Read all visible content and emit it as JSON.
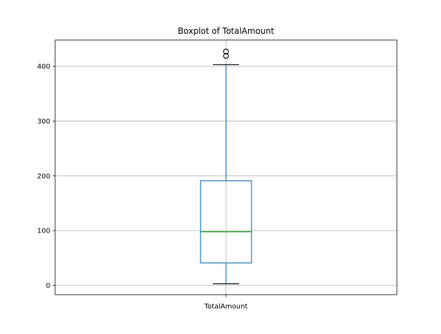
{
  "chart_data": {
    "type": "boxplot",
    "title": "Boxplot of TotalAmount",
    "xlabel": "",
    "ylabel": "",
    "categories": [
      "TotalAmount"
    ],
    "ylim": [
      -17,
      448
    ],
    "yticks": [
      0,
      100,
      200,
      300,
      400
    ],
    "grid": true,
    "boxes": [
      {
        "category": "TotalAmount",
        "whisker_low": 3,
        "q1": 41,
        "median": 98,
        "q3": 191,
        "whisker_high": 403,
        "outliers": [
          419,
          427
        ]
      }
    ],
    "colors": {
      "box": "#1f77b4",
      "median": "#2ca02c",
      "whisker": "#1f77b4",
      "cap": "#000000",
      "outlier": "#000000",
      "grid": "#b0b0b0"
    }
  }
}
